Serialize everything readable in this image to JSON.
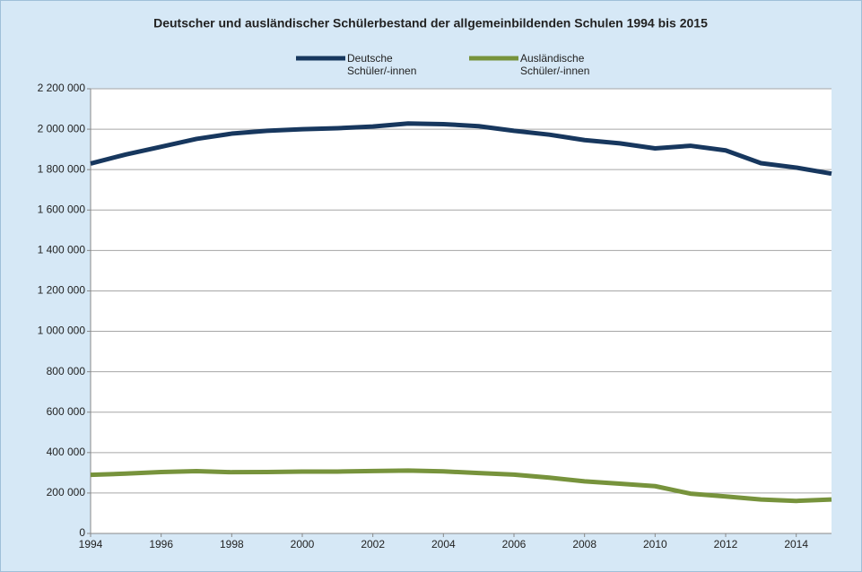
{
  "chart_data": {
    "type": "line",
    "title": "Deutscher und ausländischer Schülerbestand der allgemeinbildenden Schulen 1994 bis 2015",
    "x": [
      1994,
      1995,
      1996,
      1997,
      1998,
      1999,
      2000,
      2001,
      2002,
      2003,
      2004,
      2005,
      2006,
      2007,
      2008,
      2009,
      2010,
      2011,
      2012,
      2013,
      2014,
      2015
    ],
    "series": [
      {
        "name": "Deutsche Schüler/-innen",
        "color": "#17375e",
        "values": [
          1830000,
          1875000,
          1913000,
          1952000,
          1978000,
          1992000,
          2000000,
          2005000,
          2013000,
          2028000,
          2025000,
          2015000,
          1992000,
          1973000,
          1946000,
          1930000,
          1905000,
          1918000,
          1895000,
          1832000,
          1810000,
          1780000
        ]
      },
      {
        "name": "Ausländische Schüler/-innen",
        "color": "#77933c",
        "values": [
          290000,
          296000,
          304000,
          308000,
          303000,
          304000,
          306000,
          306000,
          309000,
          311000,
          307000,
          299000,
          291000,
          276000,
          258000,
          246000,
          234000,
          197000,
          183000,
          168000,
          161000,
          168000
        ]
      }
    ],
    "xlim": [
      1994,
      2015
    ],
    "xticks": [
      1994,
      1996,
      1998,
      2000,
      2002,
      2004,
      2006,
      2008,
      2010,
      2012,
      2014
    ],
    "ylim": [
      0,
      2200000
    ],
    "yticks": [
      0,
      {
        "value": 200000,
        "label": "200 000"
      },
      {
        "value": 400000,
        "label": "400 000"
      },
      {
        "value": 600000,
        "label": "600 000"
      },
      {
        "value": 800000,
        "label": "800 000"
      },
      {
        "value": 1000000,
        "label": "1 000 000"
      },
      {
        "value": 1200000,
        "label": "1 200 000"
      },
      {
        "value": 1400000,
        "label": "1 400 000"
      },
      {
        "value": 1600000,
        "label": "1 600 000"
      },
      {
        "value": 1800000,
        "label": "1 800 000"
      },
      {
        "value": 2000000,
        "label": "2 000 000"
      },
      {
        "value": 2200000,
        "label": "2 200 000"
      }
    ],
    "grid": true,
    "legend": "top"
  }
}
